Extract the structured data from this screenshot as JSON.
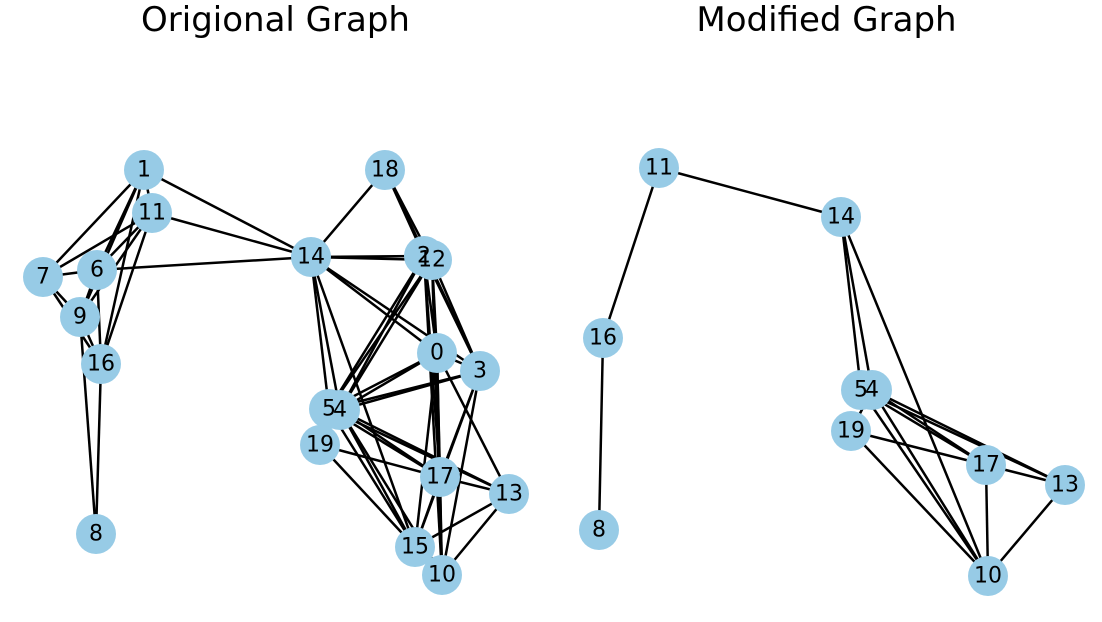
{
  "titles": {
    "original": "Origional Graph",
    "modified": "Modified Graph"
  },
  "colors": {
    "node_fill": "#97cbe6",
    "edge": "#000000"
  },
  "graphs": [
    {
      "id": "original",
      "nodes": [
        "0",
        "1",
        "2",
        "3",
        "4",
        "5",
        "6",
        "7",
        "8",
        "9",
        "10",
        "11",
        "12",
        "13",
        "14",
        "15",
        "16",
        "17",
        "18",
        "19"
      ],
      "edges": [
        [
          "1",
          "11"
        ],
        [
          "1",
          "7"
        ],
        [
          "1",
          "6"
        ],
        [
          "1",
          "9"
        ],
        [
          "1",
          "16"
        ],
        [
          "1",
          "14"
        ],
        [
          "11",
          "7"
        ],
        [
          "11",
          "6"
        ],
        [
          "11",
          "9"
        ],
        [
          "11",
          "16"
        ],
        [
          "11",
          "14"
        ],
        [
          "7",
          "6"
        ],
        [
          "7",
          "9"
        ],
        [
          "7",
          "16"
        ],
        [
          "6",
          "9"
        ],
        [
          "6",
          "16"
        ],
        [
          "6",
          "14"
        ],
        [
          "9",
          "16"
        ],
        [
          "9",
          "8"
        ],
        [
          "16",
          "8"
        ],
        [
          "18",
          "14"
        ],
        [
          "18",
          "2"
        ],
        [
          "18",
          "12"
        ],
        [
          "18",
          "3"
        ],
        [
          "14",
          "2"
        ],
        [
          "14",
          "12"
        ],
        [
          "14",
          "0"
        ],
        [
          "14",
          "3"
        ],
        [
          "14",
          "5"
        ],
        [
          "14",
          "4"
        ],
        [
          "14",
          "15"
        ],
        [
          "2",
          "12"
        ],
        [
          "2",
          "0"
        ],
        [
          "2",
          "3"
        ],
        [
          "2",
          "5"
        ],
        [
          "2",
          "4"
        ],
        [
          "2",
          "17"
        ],
        [
          "2",
          "10"
        ],
        [
          "12",
          "0"
        ],
        [
          "12",
          "3"
        ],
        [
          "12",
          "5"
        ],
        [
          "12",
          "4"
        ],
        [
          "12",
          "17"
        ],
        [
          "12",
          "10"
        ],
        [
          "0",
          "3"
        ],
        [
          "0",
          "5"
        ],
        [
          "0",
          "4"
        ],
        [
          "0",
          "17"
        ],
        [
          "0",
          "15"
        ],
        [
          "0",
          "10"
        ],
        [
          "0",
          "13"
        ],
        [
          "3",
          "5"
        ],
        [
          "3",
          "4"
        ],
        [
          "3",
          "17"
        ],
        [
          "3",
          "15"
        ],
        [
          "3",
          "10"
        ],
        [
          "5",
          "4"
        ],
        [
          "5",
          "19"
        ],
        [
          "5",
          "17"
        ],
        [
          "5",
          "15"
        ],
        [
          "5",
          "13"
        ],
        [
          "4",
          "19"
        ],
        [
          "4",
          "17"
        ],
        [
          "4",
          "15"
        ],
        [
          "4",
          "13"
        ],
        [
          "4",
          "10"
        ],
        [
          "19",
          "17"
        ],
        [
          "19",
          "15"
        ],
        [
          "17",
          "13"
        ],
        [
          "17",
          "15"
        ],
        [
          "17",
          "10"
        ],
        [
          "13",
          "15"
        ],
        [
          "13",
          "10"
        ]
      ]
    },
    {
      "id": "modified",
      "nodes": [
        "11",
        "14",
        "16",
        "8",
        "5",
        "4",
        "19",
        "17",
        "13",
        "10"
      ],
      "edges": [
        [
          "11",
          "14"
        ],
        [
          "11",
          "16"
        ],
        [
          "16",
          "8"
        ],
        [
          "14",
          "5"
        ],
        [
          "14",
          "4"
        ],
        [
          "14",
          "10"
        ],
        [
          "5",
          "4"
        ],
        [
          "5",
          "17"
        ],
        [
          "5",
          "13"
        ],
        [
          "5",
          "10"
        ],
        [
          "4",
          "19"
        ],
        [
          "4",
          "17"
        ],
        [
          "4",
          "13"
        ],
        [
          "4",
          "10"
        ],
        [
          "19",
          "17"
        ],
        [
          "19",
          "10"
        ],
        [
          "17",
          "13"
        ],
        [
          "17",
          "10"
        ],
        [
          "13",
          "10"
        ]
      ]
    }
  ]
}
